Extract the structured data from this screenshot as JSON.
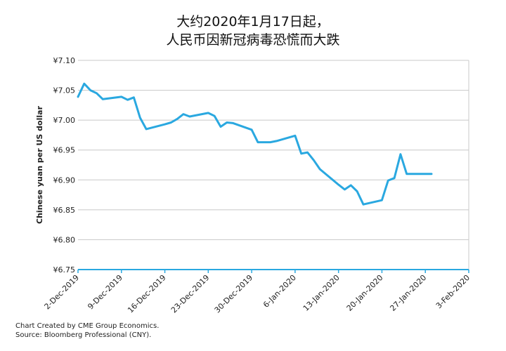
{
  "chart_data": {
    "type": "line",
    "title_line1": "大约2020年1月17日起，",
    "title_line2": "人民币因新冠病毒恐慌而大跌",
    "ylabel": "Chinese yuan per US dollar",
    "ylim": [
      6.75,
      7.1
    ],
    "y_ticks": [
      {
        "value": 7.1,
        "label": "¥7.10"
      },
      {
        "value": 7.05,
        "label": "¥7.05"
      },
      {
        "value": 7.0,
        "label": "¥7.00"
      },
      {
        "value": 6.95,
        "label": "¥6.95"
      },
      {
        "value": 6.9,
        "label": "¥6.90"
      },
      {
        "value": 6.85,
        "label": "¥6.85"
      },
      {
        "value": 6.8,
        "label": "¥6.80"
      },
      {
        "value": 6.75,
        "label": "¥6.75"
      }
    ],
    "x_ticks": [
      {
        "label": "2-Dec-2019"
      },
      {
        "label": "9-Dec-2019"
      },
      {
        "label": "16-Dec-2019"
      },
      {
        "label": "23-Dec-2019"
      },
      {
        "label": "30-Dec-2019"
      },
      {
        "label": "6-Jan-2020"
      },
      {
        "label": "13-Jan-2020"
      },
      {
        "label": "20-Jan-2020"
      },
      {
        "label": "27-Jan-2020"
      },
      {
        "label": "3-Feb-2020"
      }
    ],
    "x_start": "2019-12-02",
    "x_end": "2020-02-03",
    "series": [
      {
        "name": "",
        "color": "#2aa8e0",
        "points": [
          [
            "2019-12-02",
            7.039
          ],
          [
            "2019-12-03",
            7.061
          ],
          [
            "2019-12-04",
            7.05
          ],
          [
            "2019-12-05",
            7.045
          ],
          [
            "2019-12-06",
            7.035
          ],
          [
            "2019-12-09",
            7.039
          ],
          [
            "2019-12-10",
            7.034
          ],
          [
            "2019-12-11",
            7.038
          ],
          [
            "2019-12-12",
            7.004
          ],
          [
            "2019-12-13",
            6.985
          ],
          [
            "2019-12-16",
            6.993
          ],
          [
            "2019-12-17",
            6.996
          ],
          [
            "2019-12-18",
            7.002
          ],
          [
            "2019-12-19",
            7.01
          ],
          [
            "2019-12-20",
            7.006
          ],
          [
            "2019-12-23",
            7.012
          ],
          [
            "2019-12-24",
            7.007
          ],
          [
            "2019-12-25",
            6.989
          ],
          [
            "2019-12-26",
            6.996
          ],
          [
            "2019-12-27",
            6.995
          ],
          [
            "2019-12-30",
            6.984
          ],
          [
            "2019-12-31",
            6.963
          ],
          [
            "2020-01-02",
            6.963
          ],
          [
            "2020-01-03",
            6.965
          ],
          [
            "2020-01-06",
            6.974
          ],
          [
            "2020-01-07",
            6.944
          ],
          [
            "2020-01-08",
            6.946
          ],
          [
            "2020-01-09",
            6.933
          ],
          [
            "2020-01-10",
            6.918
          ],
          [
            "2020-01-13",
            6.892
          ],
          [
            "2020-01-14",
            6.884
          ],
          [
            "2020-01-15",
            6.891
          ],
          [
            "2020-01-16",
            6.881
          ],
          [
            "2020-01-17",
            6.859
          ],
          [
            "2020-01-20",
            6.866
          ],
          [
            "2020-01-21",
            6.899
          ],
          [
            "2020-01-22",
            6.903
          ],
          [
            "2020-01-23",
            6.943
          ],
          [
            "2020-01-24",
            6.91
          ],
          [
            "2020-01-28",
            6.91
          ]
        ]
      }
    ],
    "grid": "horizontal"
  },
  "footer": {
    "line1": "Chart Created by CME Group Economics.",
    "line2": "Source:  Bloomberg Professional (CNY)."
  }
}
